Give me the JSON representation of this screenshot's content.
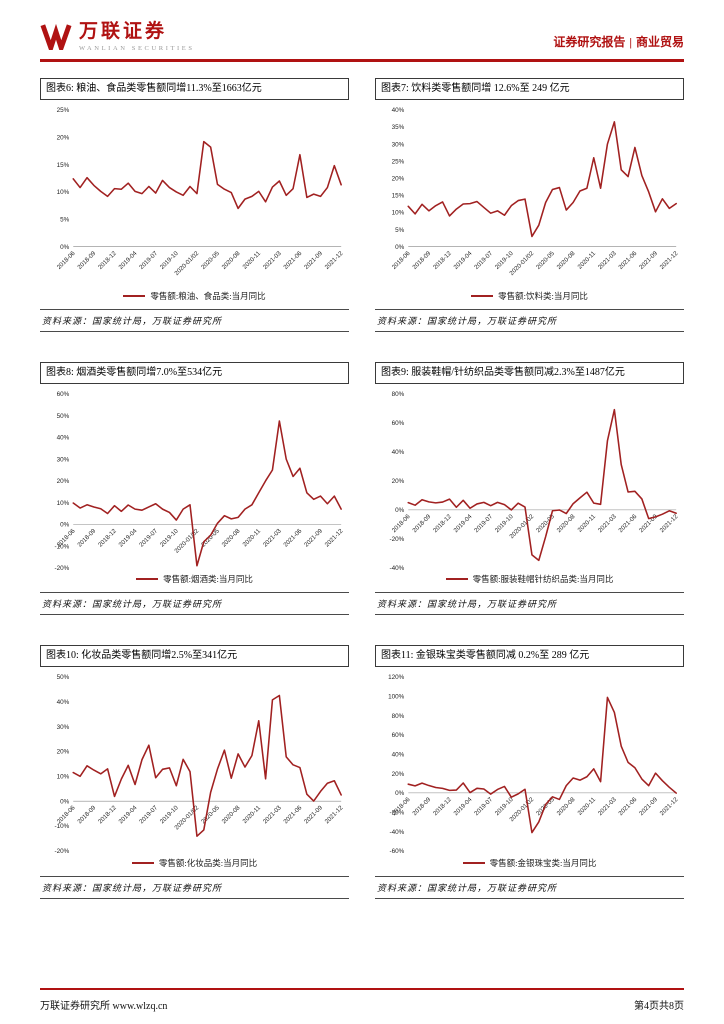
{
  "header": {
    "brand": "万联证券",
    "brand_en": "WANLIAN SECURITIES",
    "report_type": "证券研究报告",
    "separator": "|",
    "category": "商业贸易"
  },
  "footer": {
    "left_org": "万联证券研究所",
    "left_url": "www.wlzq.cn",
    "right": "第4页共8页"
  },
  "source_label": "资料来源：国家统计局，万联证券研究所",
  "colors": {
    "accent": "#B01212",
    "line": "#A12121",
    "axis": "#888888"
  },
  "x_categories": [
    "2018-06",
    "2018-07",
    "2018-08",
    "2018-09",
    "2018-10",
    "2018-11",
    "2018-12",
    "2019-01/02",
    "2019-03",
    "2019-04",
    "2019-05",
    "2019-06",
    "2019-07",
    "2019-08",
    "2019-09",
    "2019-10",
    "2019-11",
    "2019-12",
    "2020-01/02",
    "2020-03",
    "2020-04",
    "2020-05",
    "2020-06",
    "2020-07",
    "2020-08",
    "2020-09",
    "2020-10",
    "2020-11",
    "2020-12",
    "2021-01/02",
    "2021-03",
    "2021-04",
    "2021-05",
    "2021-06",
    "2021-07",
    "2021-08",
    "2021-09",
    "2021-10",
    "2021-11",
    "2021-12"
  ],
  "x_tick_every": 3,
  "chart_data": [
    {
      "id": "图表6",
      "type": "line",
      "title": "图表6: 粮油、食品类零售额同增11.3%至1663亿元",
      "legend": "零售额:粮油、食品类:当月同比",
      "ylabel": "",
      "unit": "%",
      "ylim": [
        0,
        25
      ],
      "ystep": 5,
      "grid": false,
      "legend_position": "bottom",
      "values": [
        12.4,
        10.8,
        12.6,
        11.2,
        10.1,
        9.2,
        10.6,
        10.5,
        11.6,
        10.1,
        9.7,
        11.0,
        9.8,
        12.1,
        10.8,
        10.0,
        9.4,
        11.0,
        9.7,
        19.2,
        18.2,
        11.4,
        10.5,
        9.9,
        7.0,
        8.7,
        9.2,
        10.1,
        8.2,
        10.9,
        12.0,
        9.4,
        10.6,
        16.8,
        9.0,
        9.6,
        9.2,
        10.8,
        14.8,
        11.3
      ]
    },
    {
      "id": "图表7",
      "type": "line",
      "title": "图表7: 饮料类零售额同增 12.6%至 249 亿元",
      "legend": "零售额:饮料类:当月同比",
      "ylabel": "",
      "unit": "%",
      "ylim": [
        0,
        40
      ],
      "ystep": 5,
      "grid": false,
      "legend_position": "bottom",
      "values": [
        11.8,
        9.6,
        12.4,
        10.5,
        12.0,
        13.1,
        9.0,
        11.0,
        12.5,
        12.6,
        13.2,
        11.5,
        9.8,
        10.5,
        9.2,
        12.0,
        13.5,
        13.9,
        3.0,
        6.3,
        12.9,
        16.7,
        17.3,
        10.7,
        12.9,
        16.3,
        17.1,
        26.0,
        17.1,
        30.0,
        36.5,
        22.5,
        20.5,
        29.0,
        20.8,
        16.0,
        10.2,
        14.0,
        11.2,
        12.6
      ]
    },
    {
      "id": "图表8",
      "type": "line",
      "title": "图表8: 烟酒类零售额同增7.0%至534亿元",
      "legend": "零售额:烟酒类:当月同比",
      "ylabel": "",
      "unit": "%",
      "ylim": [
        -20,
        60
      ],
      "ystep": 10,
      "grid": false,
      "legend_position": "bottom",
      "values": [
        9.8,
        7.5,
        9.0,
        8.0,
        7.2,
        5.0,
        8.6,
        6.0,
        8.9,
        7.0,
        6.5,
        8.0,
        9.5,
        7.0,
        5.5,
        2.0,
        7.0,
        9.0,
        -19.0,
        -8.0,
        -5.0,
        0.5,
        4.0,
        2.5,
        3.2,
        7.0,
        9.0,
        14.5,
        20.0,
        25.0,
        47.5,
        30.0,
        22.0,
        25.8,
        14.5,
        11.5,
        13.0,
        9.5,
        13.0,
        7.0
      ]
    },
    {
      "id": "图表9",
      "type": "line",
      "title": "图表9: 服装鞋帽/针纺织品类零售额同减2.3%至1487亿元",
      "legend": "零售额:服装鞋帽针纺织品类:当月同比",
      "ylabel": "",
      "unit": "%",
      "ylim": [
        -40,
        80
      ],
      "ystep": 20,
      "grid": false,
      "legend_position": "bottom",
      "values": [
        5.0,
        3.2,
        7.0,
        5.5,
        4.8,
        5.4,
        7.4,
        1.8,
        6.6,
        1.1,
        4.1,
        5.2,
        2.9,
        5.2,
        3.6,
        0.0,
        4.6,
        1.9,
        -31.0,
        -34.8,
        -18.5,
        -0.6,
        -0.1,
        -2.5,
        4.2,
        8.3,
        12.2,
        4.6,
        3.8,
        47.6,
        69.1,
        31.2,
        12.3,
        12.8,
        7.5,
        -6.0,
        -4.8,
        -3.0,
        -0.6,
        -2.3
      ]
    },
    {
      "id": "图表10",
      "type": "line",
      "title": "图表10: 化妆品类零售额同增2.5%至341亿元",
      "legend": "零售额:化妆品类:当月同比",
      "ylabel": "",
      "unit": "%",
      "ylim": [
        -20,
        50
      ],
      "ystep": 10,
      "grid": false,
      "legend_position": "bottom",
      "values": [
        11.5,
        10.0,
        14.2,
        12.5,
        11.0,
        13.0,
        1.9,
        8.9,
        14.4,
        6.7,
        16.7,
        22.5,
        9.4,
        12.8,
        13.4,
        6.2,
        16.8,
        11.9,
        -14.1,
        -11.6,
        3.5,
        12.9,
        20.5,
        9.2,
        19.0,
        13.7,
        18.3,
        32.3,
        9.0,
        40.7,
        42.5,
        17.8,
        14.6,
        13.5,
        2.8,
        0.0,
        3.9,
        7.2,
        8.2,
        2.5
      ]
    },
    {
      "id": "图表11",
      "type": "line",
      "title": "图表11: 金银珠宝类零售额同减 0.2%至 289 亿元",
      "legend": "零售额:金银珠宝类:当月同比",
      "ylabel": "",
      "unit": "%",
      "ylim": [
        -60,
        120
      ],
      "ystep": 20,
      "grid": false,
      "legend_position": "bottom",
      "values": [
        9.0,
        7.2,
        10.1,
        7.6,
        5.5,
        4.6,
        2.6,
        2.9,
        10.2,
        0.3,
        4.7,
        4.0,
        -1.2,
        3.5,
        6.6,
        -4.5,
        -1.0,
        3.7,
        -41.1,
        -30.1,
        -12.1,
        -4.1,
        -6.8,
        7.5,
        15.3,
        13.1,
        16.7,
        24.8,
        11.6,
        98.7,
        83.2,
        48.3,
        31.5,
        26.0,
        14.3,
        7.4,
        20.4,
        12.6,
        5.7,
        -0.2
      ]
    }
  ]
}
